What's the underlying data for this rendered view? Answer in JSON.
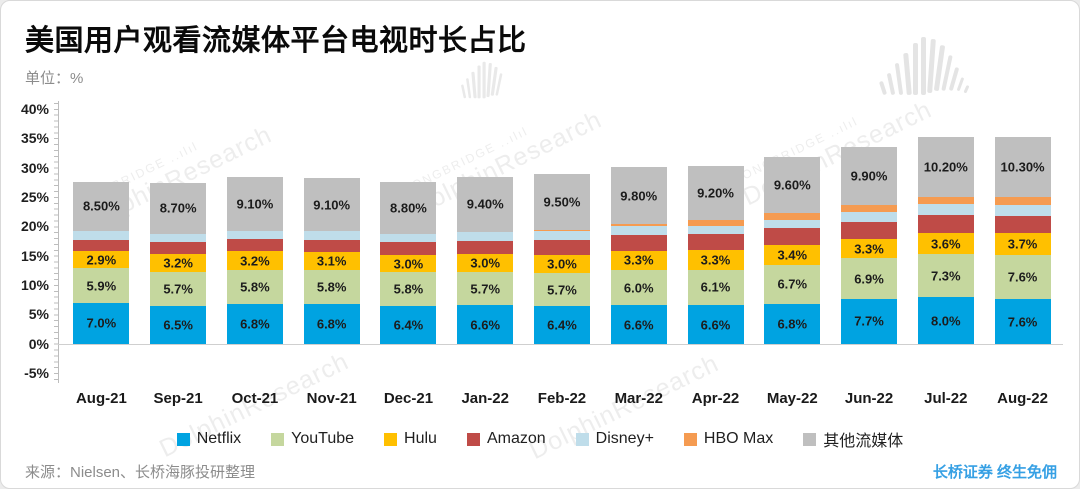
{
  "page": {
    "background": "#ececec",
    "card_background": "#ffffff"
  },
  "header": {
    "title": "美国用户观看流媒体平台电视时长占比",
    "unit_label": "单位：%"
  },
  "footer": {
    "source": "来源：Nielsen、长桥海豚投研整理",
    "brand": "长桥证券 终生免佣",
    "brand_color": "#36A0E4"
  },
  "watermark": {
    "line1": "LONGBRIDGE ..ılıl",
    "line2": "DolphinResearch"
  },
  "chart_data": {
    "type": "bar",
    "stacked": true,
    "unit": "%",
    "grid": false,
    "legend_position": "bottom",
    "categories": [
      "Aug-21",
      "Sep-21",
      "Oct-21",
      "Nov-21",
      "Dec-21",
      "Jan-22",
      "Feb-22",
      "Mar-22",
      "Apr-22",
      "May-22",
      "Jun-22",
      "Jul-22",
      "Aug-22"
    ],
    "series": [
      {
        "name": "Netflix",
        "color": "#00A3E1",
        "values": [
          7.0,
          6.5,
          6.8,
          6.8,
          6.4,
          6.6,
          6.4,
          6.6,
          6.6,
          6.8,
          7.7,
          8.0,
          7.6
        ],
        "labels": [
          "7.0%",
          "6.5%",
          "6.8%",
          "6.8%",
          "6.4%",
          "6.6%",
          "6.4%",
          "6.6%",
          "6.6%",
          "6.8%",
          "7.7%",
          "8.0%",
          "7.6%"
        ]
      },
      {
        "name": "YouTube",
        "color": "#C5D79E",
        "values": [
          5.9,
          5.7,
          5.8,
          5.8,
          5.8,
          5.7,
          5.7,
          6.0,
          6.1,
          6.7,
          6.9,
          7.3,
          7.6
        ],
        "labels": [
          "5.9%",
          "5.7%",
          "5.8%",
          "5.8%",
          "5.8%",
          "5.7%",
          "5.7%",
          "6.0%",
          "6.1%",
          "6.7%",
          "6.9%",
          "7.3%",
          "7.6%"
        ]
      },
      {
        "name": "Hulu",
        "color": "#FFC000",
        "values": [
          2.9,
          3.2,
          3.2,
          3.1,
          3.0,
          3.0,
          3.0,
          3.3,
          3.3,
          3.4,
          3.3,
          3.6,
          3.7
        ],
        "labels": [
          "2.9%",
          "3.2%",
          "3.2%",
          "3.1%",
          "3.0%",
          "3.0%",
          "3.0%",
          "3.3%",
          "3.3%",
          "3.4%",
          "3.3%",
          "3.6%",
          "3.7%"
        ]
      },
      {
        "name": "Amazon",
        "color": "#BF4B47",
        "values": [
          2.0,
          2.0,
          2.1,
          2.1,
          2.2,
          2.3,
          2.7,
          2.7,
          2.7,
          2.8,
          2.9,
          3.0,
          2.9
        ],
        "estimated": true
      },
      {
        "name": "Disney+",
        "color": "#BFDDEA",
        "values": [
          1.4,
          1.4,
          1.4,
          1.4,
          1.4,
          1.5,
          1.4,
          1.6,
          1.5,
          1.4,
          1.7,
          1.9,
          1.9
        ],
        "estimated": true
      },
      {
        "name": "HBO Max",
        "color": "#F59B51",
        "values": [
          0,
          0,
          0,
          0,
          0,
          0,
          0.3,
          0.2,
          1.0,
          1.2,
          1.1,
          1.2,
          1.3
        ],
        "estimated": true
      },
      {
        "name": "其他流媒体",
        "color": "#BFBFBF",
        "values": [
          8.5,
          8.7,
          9.1,
          9.1,
          8.8,
          9.4,
          9.5,
          9.8,
          9.2,
          9.6,
          9.9,
          10.2,
          10.3
        ],
        "labels": [
          "8.50%",
          "8.70%",
          "9.10%",
          "9.10%",
          "8.80%",
          "9.40%",
          "9.50%",
          "9.80%",
          "9.20%",
          "9.60%",
          "9.90%",
          "10.20%",
          "10.30%"
        ]
      }
    ],
    "y_axis": {
      "min": -5,
      "max": 40,
      "tick_step": 5,
      "ticks": [
        "40%",
        "35%",
        "30%",
        "25%",
        "20%",
        "15%",
        "10%",
        "5%",
        "0%",
        "-5%"
      ]
    }
  }
}
